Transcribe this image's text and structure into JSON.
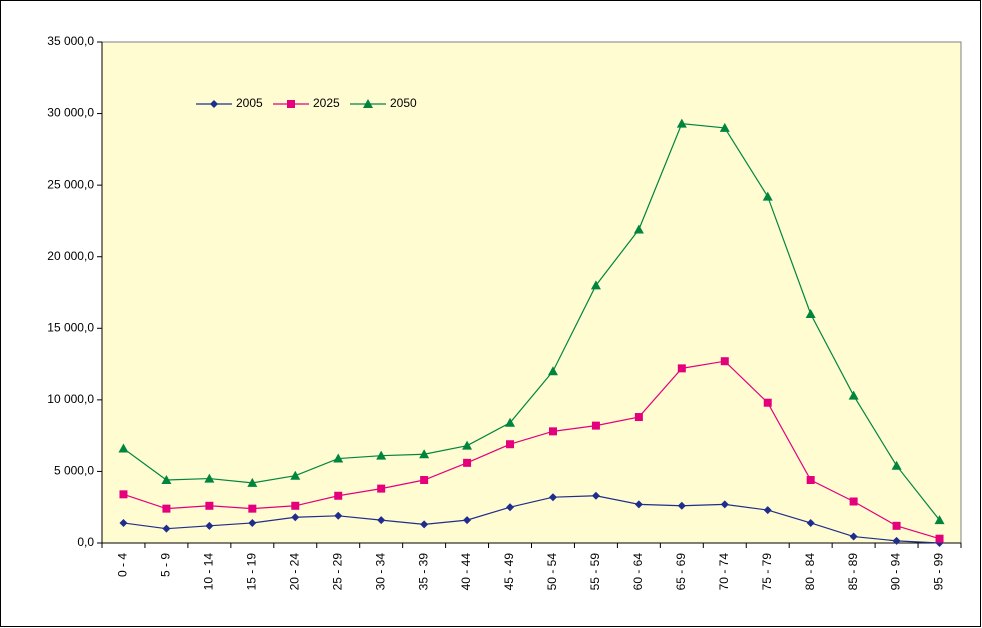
{
  "chart_data": {
    "type": "line",
    "categories": [
      "0 - 4",
      "5 - 9",
      "10 - 14",
      "15 - 19",
      "20 - 24",
      "25 - 29",
      "30 - 34",
      "35 - 39",
      "40 - 44",
      "45 - 49",
      "50 - 54",
      "55 - 59",
      "60 - 64",
      "65 - 69",
      "70 - 74",
      "75 - 79",
      "80 - 84",
      "85 - 89",
      "90 - 94",
      "95 - 99"
    ],
    "series": [
      {
        "name": "2005",
        "color": "#1f2d8c",
        "marker": "diamond",
        "values": [
          1400,
          1000,
          1200,
          1400,
          1800,
          1900,
          1600,
          1300,
          1600,
          2500,
          3200,
          3300,
          2700,
          2600,
          2700,
          2300,
          1400,
          450,
          150,
          0
        ]
      },
      {
        "name": "2025",
        "color": "#e4007c",
        "marker": "square",
        "values": [
          3400,
          2400,
          2600,
          2400,
          2600,
          3300,
          3800,
          4400,
          5600,
          6900,
          7800,
          8200,
          8800,
          12200,
          12700,
          9800,
          4400,
          2900,
          1200,
          300
        ]
      },
      {
        "name": "2050",
        "color": "#00853f",
        "marker": "triangle",
        "values": [
          6600,
          4400,
          4500,
          4200,
          4700,
          5900,
          6100,
          6200,
          6800,
          8400,
          12000,
          18000,
          21900,
          29300,
          29000,
          24200,
          16000,
          10300,
          5400,
          1600
        ]
      }
    ],
    "ylim": [
      0,
      35000
    ],
    "yticks": [
      {
        "value": 0,
        "label": "0,0"
      },
      {
        "value": 5000,
        "label": "5 000,0"
      },
      {
        "value": 10000,
        "label": "10 000,0"
      },
      {
        "value": 15000,
        "label": "15 000,0"
      },
      {
        "value": 20000,
        "label": "20 000,0"
      },
      {
        "value": 25000,
        "label": "25 000,0"
      },
      {
        "value": 30000,
        "label": "30 000,0"
      },
      {
        "value": 35000,
        "label": "35 000,0"
      }
    ],
    "grid": false,
    "legend": "top-left",
    "plot_background": "#fffcd2"
  }
}
